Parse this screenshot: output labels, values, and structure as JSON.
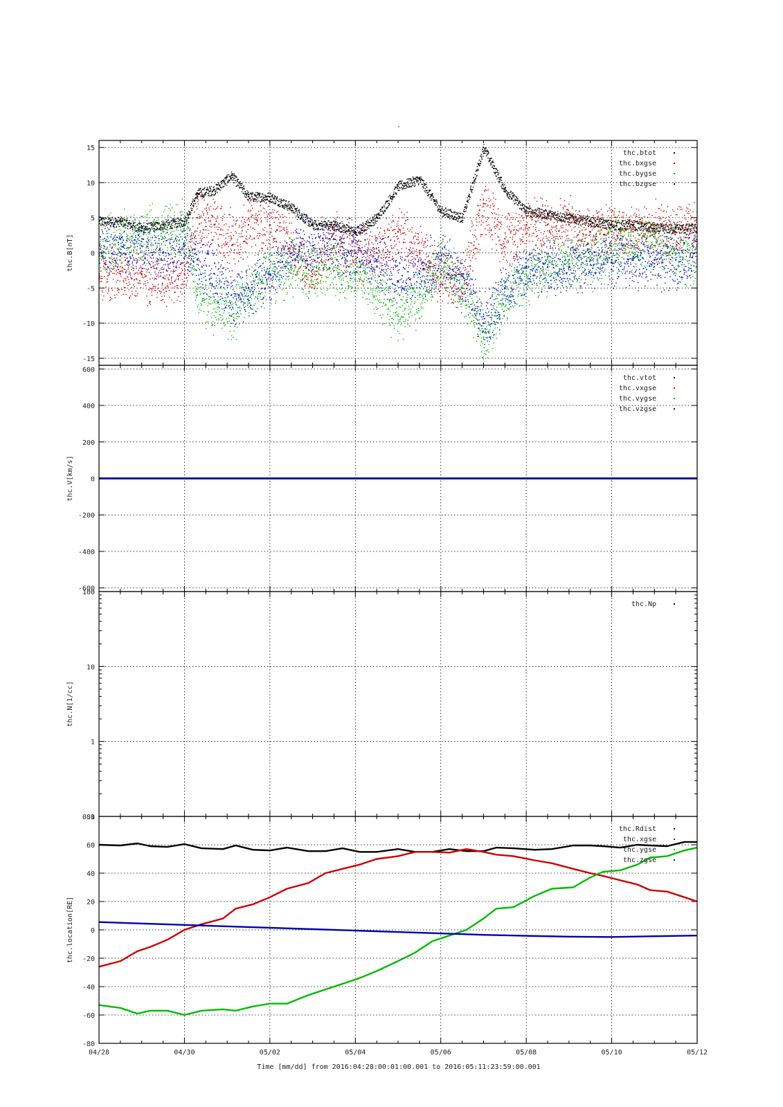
{
  "figure": {
    "top_title": "-",
    "xlabel": "Time [mm/dd]  from 2016:04:28:00:01:00.001  to  2016:05:11:23:59:00.001"
  },
  "chart_data": [
    {
      "type": "scatter",
      "ylabel": "thc.B[nT]",
      "ylim": [
        -16,
        16
      ],
      "yscale": "linear",
      "yticks": [
        -15,
        -10,
        -5,
        0,
        5,
        10,
        15
      ],
      "xlim": [
        0,
        14
      ],
      "xtick_labels": [
        "04/28",
        "04/30",
        "05/02",
        "05/04",
        "05/06",
        "05/08",
        "05/10",
        "05/12"
      ],
      "grid": true,
      "legend_position": "top-right",
      "series": [
        {
          "name": "thc.btot",
          "color": "#000000",
          "x": [
            0,
            0.5,
            1,
            1.5,
            2,
            2.3,
            2.7,
            3.1,
            3.5,
            4,
            4.5,
            5,
            5.5,
            6,
            6.5,
            7,
            7.5,
            8,
            8.5,
            9,
            9.5,
            10,
            10.5,
            11,
            11.5,
            12,
            12.5,
            13,
            13.5,
            14
          ],
          "values": [
            4.5,
            4.5,
            3.5,
            4,
            4.5,
            8.5,
            9,
            11,
            8,
            8,
            6.5,
            4,
            4,
            3,
            5,
            9.5,
            10.5,
            6,
            5,
            15,
            9,
            6,
            5.5,
            5,
            4.5,
            4,
            4,
            3.5,
            3.5,
            3.5
          ]
        },
        {
          "name": "thc.bxgse",
          "color": "#cc0000",
          "x": [
            0,
            0.5,
            1,
            1.5,
            2,
            2.3,
            2.7,
            3.1,
            3.5,
            4,
            4.5,
            5,
            5.5,
            6,
            6.5,
            7,
            7.5,
            8,
            8.5,
            9,
            9.5,
            10,
            10.5,
            11,
            11.5,
            12,
            12.5,
            13,
            13.5,
            14
          ],
          "values": [
            -3,
            -3,
            -3,
            -3.5,
            -3,
            5,
            4,
            2,
            4,
            4,
            1,
            -3,
            2,
            0,
            0,
            3,
            0,
            -3,
            -5,
            7,
            2,
            4,
            4,
            4,
            3,
            3,
            3,
            3,
            3,
            3
          ]
        },
        {
          "name": "thc.bygse",
          "color": "#00bb00",
          "x": [
            0,
            0.5,
            1,
            1.5,
            2,
            2.3,
            2.7,
            3.1,
            3.5,
            4,
            4.5,
            5,
            5.5,
            6,
            6.5,
            7,
            7.5,
            8,
            8.5,
            9,
            9.5,
            10,
            10.5,
            11,
            11.5,
            12,
            12.5,
            13,
            13.5,
            14
          ],
          "values": [
            1,
            2,
            2,
            3,
            4,
            -6,
            -7,
            -9,
            -5,
            -3,
            -2,
            -2,
            -2,
            -3,
            -5,
            -9,
            -6,
            -1,
            -5,
            -12,
            -6,
            -3,
            -2,
            -1,
            -1,
            1,
            1,
            1,
            0,
            -1
          ]
        },
        {
          "name": "thc.bzgse",
          "color": "#0000cc",
          "x": [
            0,
            0.5,
            1,
            1.5,
            2,
            2.3,
            2.7,
            3.1,
            3.5,
            4,
            4.5,
            5,
            5.5,
            6,
            6.5,
            7,
            7.5,
            8,
            8.5,
            9,
            9.5,
            10,
            10.5,
            11,
            11.5,
            12,
            12.5,
            13,
            13.5,
            14
          ],
          "values": [
            1,
            0,
            1,
            0,
            1,
            -1,
            -3,
            -6,
            -5,
            -3,
            0,
            1,
            1,
            0,
            -1,
            -4,
            -3,
            -1,
            -3,
            -10,
            -5,
            -2,
            -2,
            -2,
            -1,
            -1,
            -1,
            -1,
            -1,
            -1
          ]
        }
      ]
    },
    {
      "type": "line",
      "ylabel": "thc.V[km/s]",
      "ylim": [
        -620,
        620
      ],
      "yscale": "linear",
      "yticks": [
        -600,
        -400,
        -200,
        0,
        200,
        400,
        600
      ],
      "xlim": [
        0,
        14
      ],
      "xtick_labels": [
        "04/28",
        "04/30",
        "05/02",
        "05/04",
        "05/06",
        "05/08",
        "05/10",
        "05/12"
      ],
      "grid": true,
      "legend_position": "top-right",
      "series": [
        {
          "name": "thc.vtot",
          "color": "#000000",
          "x": [
            0,
            14
          ],
          "values": [
            0,
            0
          ]
        },
        {
          "name": "thc.vxgse",
          "color": "#cc0000",
          "x": [
            0,
            14
          ],
          "values": [
            0,
            0
          ]
        },
        {
          "name": "thc.vygse",
          "color": "#00bb00",
          "x": [
            0,
            14
          ],
          "values": [
            0,
            0
          ]
        },
        {
          "name": "thc.vzgse",
          "color": "#0000aa",
          "x": [
            0,
            14
          ],
          "values": [
            0,
            0
          ]
        }
      ]
    },
    {
      "type": "line",
      "ylabel": "thc.N[1/cc]",
      "ylim": [
        0.1,
        100
      ],
      "yscale": "log",
      "yticks": [
        0.1,
        1,
        10,
        100
      ],
      "ytick_labels": [
        "0.1",
        "1",
        "10",
        "100"
      ],
      "xlim": [
        0,
        14
      ],
      "xtick_labels": [
        "04/28",
        "04/30",
        "05/02",
        "05/04",
        "05/06",
        "05/08",
        "05/10",
        "05/12"
      ],
      "grid": true,
      "legend_position": "top-right",
      "series": [
        {
          "name": "thc.Np",
          "color": "#000000",
          "x": [],
          "values": []
        }
      ]
    },
    {
      "type": "line",
      "ylabel": "thc.location[RE]",
      "ylim": [
        -80,
        80
      ],
      "yscale": "linear",
      "yticks": [
        -80,
        -60,
        -40,
        -20,
        0,
        20,
        40,
        60,
        80
      ],
      "xlim": [
        0,
        14
      ],
      "xtick_labels": [
        "04/28",
        "04/30",
        "05/02",
        "05/04",
        "05/06",
        "05/08",
        "05/10",
        "05/12"
      ],
      "grid": true,
      "legend_position": "top-right",
      "series": [
        {
          "name": "thc.Rdist",
          "color": "#000000",
          "x": [
            0,
            0.5,
            0.9,
            1.2,
            1.6,
            2.0,
            2.4,
            2.9,
            3.2,
            3.6,
            4.0,
            4.4,
            4.9,
            5.3,
            5.7,
            6.1,
            6.5,
            7.0,
            7.4,
            7.8,
            8.2,
            8.6,
            9.0,
            9.3,
            9.7,
            10.2,
            10.6,
            11.1,
            11.5,
            11.8,
            12.2,
            12.6,
            12.9,
            13.3,
            13.7,
            14
          ],
          "values": [
            60,
            59.5,
            61,
            59,
            58.5,
            60.5,
            57.5,
            57,
            59.5,
            56.5,
            56,
            58,
            55.5,
            55.5,
            57.5,
            55,
            55,
            57,
            55,
            55,
            57,
            55.5,
            55.5,
            58,
            57.5,
            56.5,
            57,
            59.5,
            59.5,
            59,
            58,
            60,
            59.5,
            59,
            62,
            62
          ]
        },
        {
          "name": "thc.xgse",
          "color": "#cc0000",
          "x": [
            0,
            0.5,
            0.9,
            1.2,
            1.6,
            2.0,
            2.4,
            2.9,
            3.2,
            3.6,
            4.0,
            4.4,
            4.9,
            5.3,
            5.7,
            6.1,
            6.5,
            7.0,
            7.4,
            7.8,
            8.2,
            8.6,
            9.0,
            9.3,
            9.7,
            10.2,
            10.6,
            11.1,
            11.5,
            11.8,
            12.2,
            12.6,
            12.9,
            13.3,
            13.7,
            14
          ],
          "values": [
            -26,
            -22,
            -15,
            -12,
            -7,
            0,
            4,
            8,
            15,
            18,
            23,
            29,
            33,
            40,
            43,
            46,
            50,
            52,
            55,
            55,
            54.5,
            57,
            55,
            53,
            52,
            49,
            47,
            43,
            40,
            38,
            35,
            32,
            28,
            27,
            23,
            20
          ]
        },
        {
          "name": "thc.ygse",
          "color": "#00bb00",
          "x": [
            0,
            0.5,
            0.9,
            1.2,
            1.6,
            2.0,
            2.4,
            2.9,
            3.2,
            3.6,
            4.0,
            4.4,
            4.9,
            5.3,
            5.7,
            6.1,
            6.5,
            7.0,
            7.4,
            7.8,
            8.2,
            8.6,
            9.0,
            9.3,
            9.7,
            10.2,
            10.6,
            11.1,
            11.5,
            11.8,
            12.2,
            12.6,
            12.9,
            13.3,
            13.7,
            14
          ],
          "values": [
            -53,
            -55,
            -59,
            -57,
            -57,
            -60,
            -57,
            -56,
            -57,
            -54,
            -52,
            -52,
            -46,
            -42,
            -38,
            -34,
            -29,
            -22,
            -16,
            -8,
            -4,
            0,
            8,
            15,
            16,
            24,
            29,
            30,
            37,
            41,
            42,
            46,
            51,
            52,
            56,
            58
          ]
        },
        {
          "name": "thc.zgse",
          "color": "#0000aa",
          "x": [
            0,
            1,
            2,
            3,
            4,
            5,
            6,
            7,
            8,
            9,
            10,
            11,
            12,
            13,
            14
          ],
          "values": [
            5.5,
            4.5,
            3.5,
            2.5,
            1.5,
            0.5,
            -0.5,
            -1.5,
            -2.5,
            -3.5,
            -4.2,
            -4.8,
            -5,
            -4.5,
            -4
          ]
        }
      ]
    }
  ]
}
